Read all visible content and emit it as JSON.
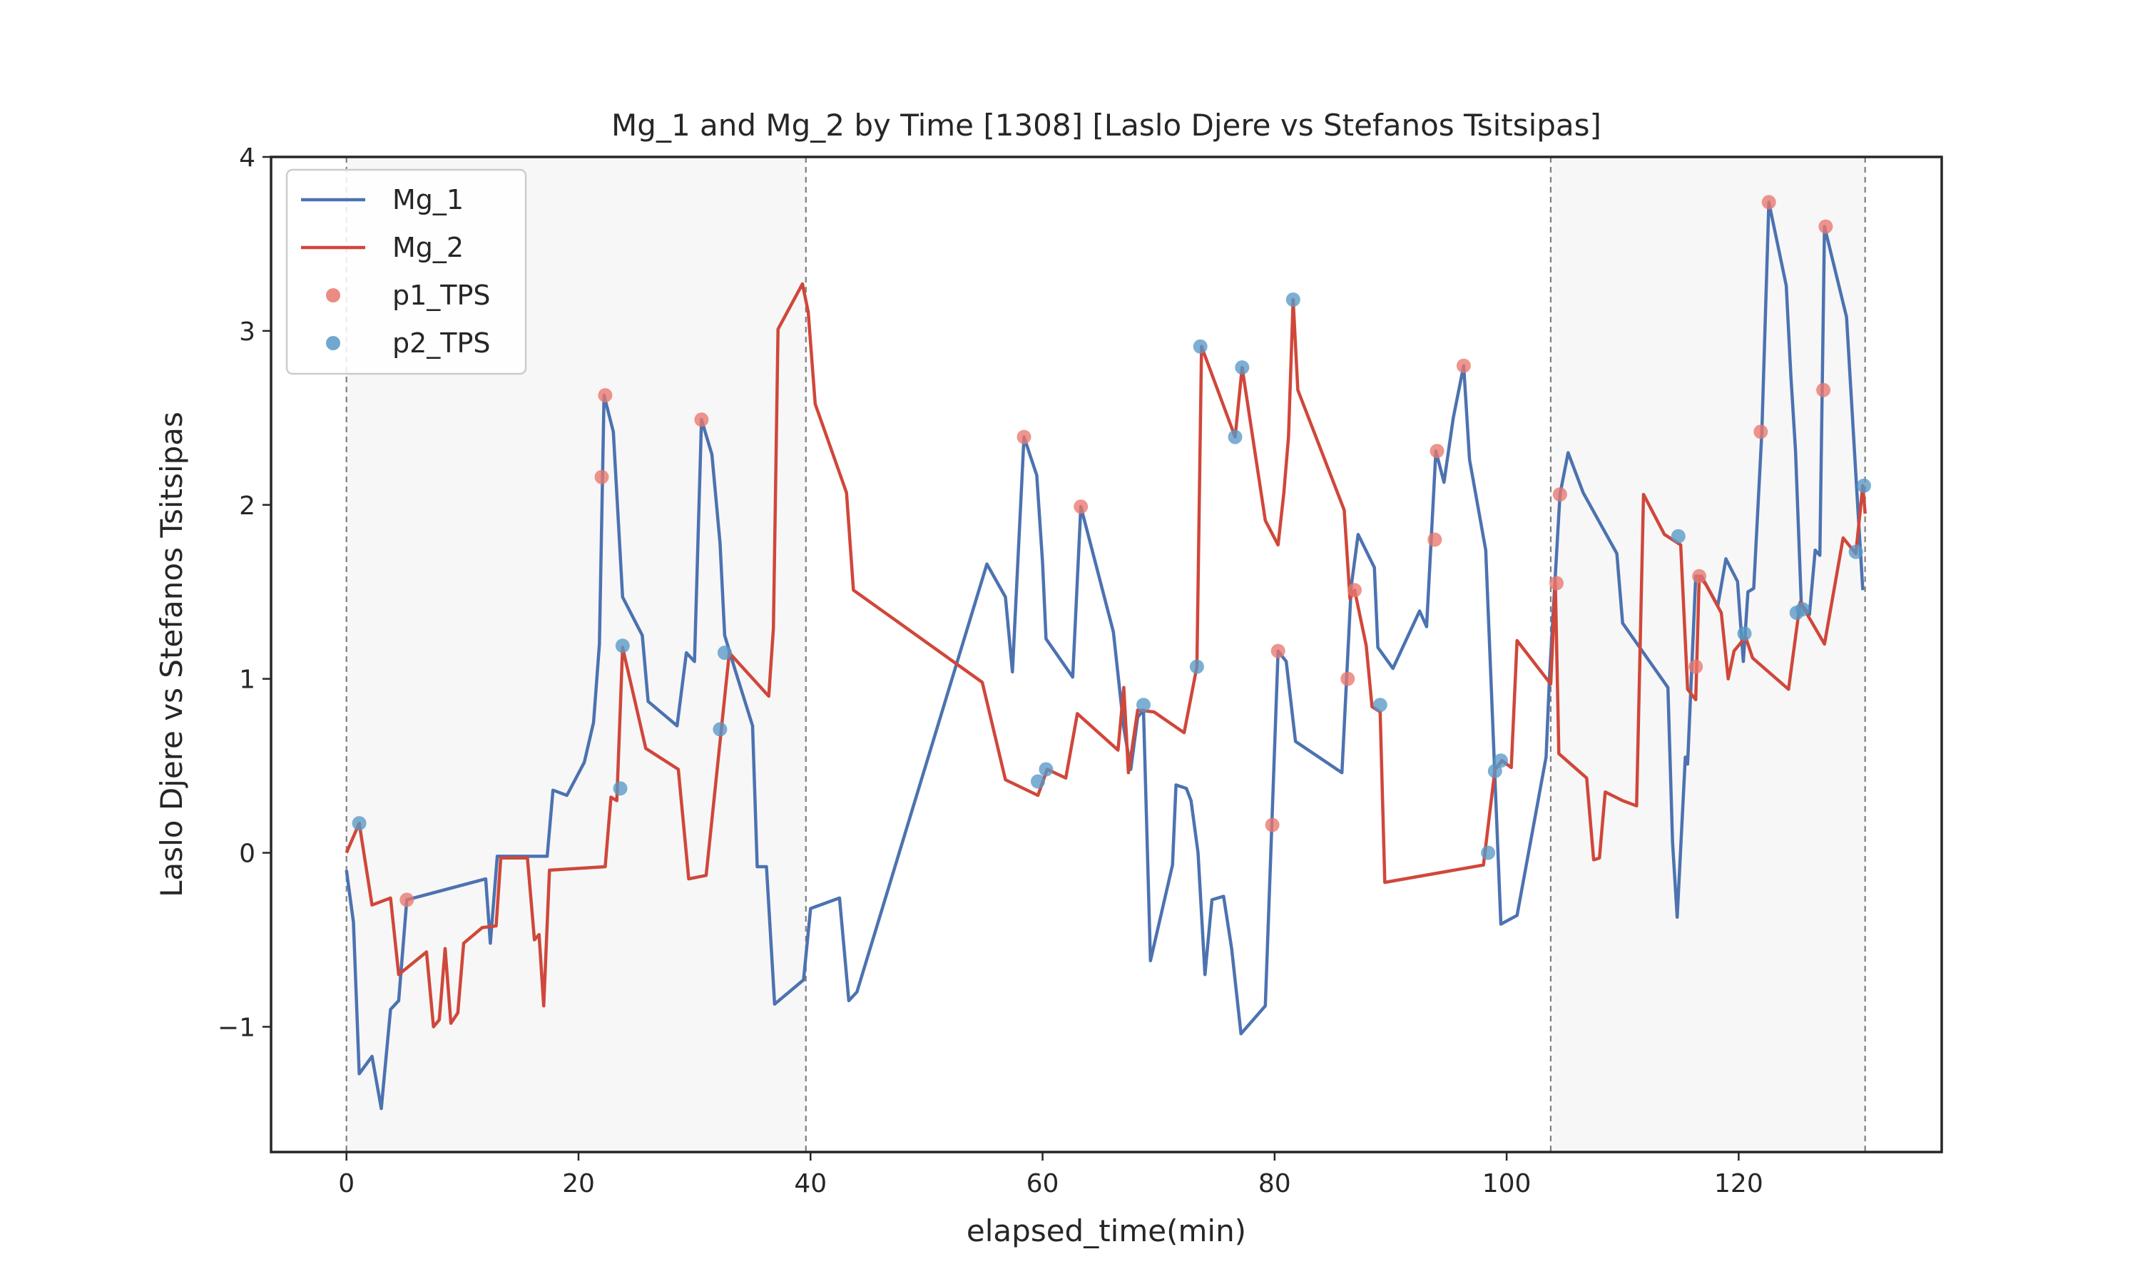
{
  "chart_data": {
    "type": "line",
    "title": "Mg_1 and Mg_2 by Time [1308] [Laslo Djere vs Stefanos Tsitsipas]",
    "xlabel": "elapsed_time(min)",
    "ylabel": "Laslo Djere vs Stefanos Tsitsipas",
    "xlim": [
      -6.5,
      137.5
    ],
    "ylim": [
      -1.72,
      4.0
    ],
    "xticks": [
      0,
      20,
      40,
      60,
      80,
      100,
      120
    ],
    "yticks": [
      -1,
      0,
      1,
      2,
      3,
      4
    ],
    "ytick_labels": [
      "−1",
      "0",
      "1",
      "2",
      "3",
      "4"
    ],
    "grid": false,
    "legend_position": "top-left",
    "set_boundaries": [
      0,
      39.6,
      103.8,
      130.9
    ],
    "shaded_sets": [
      [
        0,
        39.6
      ],
      [
        103.8,
        130.9
      ]
    ],
    "colors": {
      "mg1": "#4c72b0",
      "mg2": "#d0473a",
      "p1_tps": "#e8776e",
      "p2_tps": "#5799c7",
      "shade": "#f7f7f7",
      "divider": "#7f7f7f"
    },
    "series": [
      {
        "name": "Mg_1",
        "points": [
          [
            0,
            -0.1
          ],
          [
            0.6,
            -0.4
          ],
          [
            1.1,
            -1.27
          ],
          [
            2.2,
            -1.17
          ],
          [
            3.0,
            -1.47
          ],
          [
            3.8,
            -0.9
          ],
          [
            4.5,
            -0.85
          ],
          [
            5.2,
            -0.27
          ],
          [
            12.0,
            -0.15
          ],
          [
            12.4,
            -0.52
          ],
          [
            13.0,
            -0.02
          ],
          [
            17.3,
            -0.02
          ],
          [
            17.8,
            0.36
          ],
          [
            19.0,
            0.33
          ],
          [
            20.5,
            0.52
          ],
          [
            21.3,
            0.75
          ],
          [
            21.8,
            1.2
          ],
          [
            22.2,
            2.63
          ],
          [
            23.0,
            2.42
          ],
          [
            23.8,
            1.47
          ],
          [
            25.5,
            1.25
          ],
          [
            26.0,
            0.87
          ],
          [
            28.5,
            0.73
          ],
          [
            29.3,
            1.15
          ],
          [
            30.0,
            1.1
          ],
          [
            30.6,
            2.49
          ],
          [
            31.5,
            2.29
          ],
          [
            32.2,
            1.78
          ],
          [
            32.6,
            1.25
          ],
          [
            33.5,
            1.05
          ],
          [
            35.0,
            0.73
          ],
          [
            35.4,
            -0.08
          ],
          [
            36.2,
            -0.08
          ],
          [
            36.9,
            -0.87
          ],
          [
            39.4,
            -0.73
          ],
          [
            40.0,
            -0.32
          ],
          [
            42.5,
            -0.26
          ],
          [
            43.3,
            -0.85
          ],
          [
            44.0,
            -0.8
          ],
          [
            55.2,
            1.66
          ],
          [
            56.8,
            1.47
          ],
          [
            57.4,
            1.04
          ],
          [
            58.4,
            2.39
          ],
          [
            59.5,
            2.17
          ],
          [
            60.0,
            1.67
          ],
          [
            60.3,
            1.23
          ],
          [
            62.6,
            1.01
          ],
          [
            63.3,
            1.99
          ],
          [
            66.1,
            1.27
          ],
          [
            67.0,
            0.72
          ],
          [
            67.6,
            0.48
          ],
          [
            68.2,
            0.78
          ],
          [
            68.7,
            0.82
          ],
          [
            69.3,
            -0.62
          ],
          [
            71.2,
            -0.07
          ],
          [
            71.5,
            0.39
          ],
          [
            72.4,
            0.37
          ],
          [
            72.8,
            0.3
          ],
          [
            73.4,
            0.0
          ],
          [
            74.0,
            -0.7
          ],
          [
            74.6,
            -0.27
          ],
          [
            75.6,
            -0.25
          ],
          [
            76.3,
            -0.55
          ],
          [
            77.1,
            -1.04
          ],
          [
            79.2,
            -0.88
          ],
          [
            80.3,
            1.16
          ],
          [
            81.0,
            1.1
          ],
          [
            81.8,
            0.64
          ],
          [
            85.8,
            0.46
          ],
          [
            86.6,
            1.53
          ],
          [
            87.2,
            1.83
          ],
          [
            88.6,
            1.64
          ],
          [
            88.9,
            1.18
          ],
          [
            90.2,
            1.06
          ],
          [
            92.5,
            1.39
          ],
          [
            93.1,
            1.3
          ],
          [
            93.9,
            2.31
          ],
          [
            94.6,
            2.13
          ],
          [
            95.4,
            2.5
          ],
          [
            96.3,
            2.8
          ],
          [
            96.8,
            2.26
          ],
          [
            98.2,
            1.74
          ],
          [
            99.5,
            -0.41
          ],
          [
            100.9,
            -0.36
          ],
          [
            103.4,
            0.55
          ],
          [
            103.7,
            1.02
          ],
          [
            104.6,
            2.06
          ],
          [
            105.3,
            2.3
          ],
          [
            106.6,
            2.07
          ],
          [
            109.5,
            1.72
          ],
          [
            110.0,
            1.32
          ],
          [
            113.9,
            0.95
          ],
          [
            114.3,
            0.06
          ],
          [
            114.7,
            -0.37
          ],
          [
            115.4,
            0.55
          ],
          [
            115.6,
            0.51
          ],
          [
            116.3,
            1.59
          ],
          [
            116.8,
            1.59
          ],
          [
            118.2,
            1.42
          ],
          [
            118.9,
            1.69
          ],
          [
            119.9,
            1.56
          ],
          [
            120.4,
            1.1
          ],
          [
            120.8,
            1.5
          ],
          [
            121.3,
            1.52
          ],
          [
            122.0,
            2.42
          ],
          [
            122.6,
            3.74
          ],
          [
            124.1,
            3.26
          ],
          [
            124.5,
            2.74
          ],
          [
            124.9,
            2.31
          ],
          [
            125.4,
            1.43
          ],
          [
            126.1,
            1.37
          ],
          [
            126.6,
            1.74
          ],
          [
            127.0,
            1.71
          ],
          [
            127.4,
            3.6
          ],
          [
            129.3,
            3.08
          ],
          [
            130.3,
            1.95
          ],
          [
            130.7,
            1.51
          ]
        ]
      },
      {
        "name": "Mg_2",
        "points": [
          [
            0,
            0.0
          ],
          [
            1.1,
            0.17
          ],
          [
            2.2,
            -0.3
          ],
          [
            3.8,
            -0.26
          ],
          [
            4.5,
            -0.7
          ],
          [
            6.9,
            -0.57
          ],
          [
            7.5,
            -1.0
          ],
          [
            8.0,
            -0.96
          ],
          [
            8.5,
            -0.55
          ],
          [
            9.0,
            -0.98
          ],
          [
            9.6,
            -0.92
          ],
          [
            10.1,
            -0.52
          ],
          [
            11.7,
            -0.43
          ],
          [
            12.9,
            -0.42
          ],
          [
            13.3,
            -0.03
          ],
          [
            15.6,
            -0.03
          ],
          [
            16.2,
            -0.5
          ],
          [
            16.6,
            -0.47
          ],
          [
            17.0,
            -0.88
          ],
          [
            17.5,
            -0.1
          ],
          [
            22.3,
            -0.08
          ],
          [
            22.8,
            0.32
          ],
          [
            23.3,
            0.3
          ],
          [
            23.8,
            1.18
          ],
          [
            25.8,
            0.6
          ],
          [
            28.6,
            0.48
          ],
          [
            29.5,
            -0.15
          ],
          [
            31.0,
            -0.13
          ],
          [
            33.0,
            1.15
          ],
          [
            36.4,
            0.9
          ],
          [
            36.8,
            1.29
          ],
          [
            37.2,
            3.01
          ],
          [
            39.3,
            3.27
          ],
          [
            39.8,
            3.11
          ],
          [
            40.4,
            2.58
          ],
          [
            43.1,
            2.07
          ],
          [
            43.7,
            1.51
          ],
          [
            54.8,
            0.98
          ],
          [
            56.8,
            0.42
          ],
          [
            59.6,
            0.33
          ],
          [
            60.4,
            0.48
          ],
          [
            62.0,
            0.43
          ],
          [
            63.0,
            0.8
          ],
          [
            66.5,
            0.59
          ],
          [
            67.0,
            0.95
          ],
          [
            67.4,
            0.46
          ],
          [
            68.2,
            0.82
          ],
          [
            69.6,
            0.81
          ],
          [
            72.2,
            0.69
          ],
          [
            73.3,
            1.07
          ],
          [
            73.7,
            2.91
          ],
          [
            76.6,
            2.39
          ],
          [
            77.2,
            2.79
          ],
          [
            79.2,
            1.91
          ],
          [
            80.3,
            1.77
          ],
          [
            80.8,
            2.07
          ],
          [
            81.2,
            2.39
          ],
          [
            81.6,
            3.18
          ],
          [
            82.0,
            2.66
          ],
          [
            86.0,
            1.97
          ],
          [
            86.5,
            1.46
          ],
          [
            86.9,
            1.51
          ],
          [
            87.9,
            1.19
          ],
          [
            88.4,
            0.84
          ],
          [
            89.1,
            0.81
          ],
          [
            89.5,
            -0.17
          ],
          [
            98.0,
            -0.07
          ],
          [
            99.0,
            0.48
          ],
          [
            99.6,
            0.53
          ],
          [
            100.4,
            0.49
          ],
          [
            100.9,
            1.22
          ],
          [
            103.8,
            0.97
          ],
          [
            104.2,
            1.55
          ],
          [
            104.5,
            0.57
          ],
          [
            106.9,
            0.43
          ],
          [
            107.5,
            -0.04
          ],
          [
            108.0,
            -0.03
          ],
          [
            108.5,
            0.35
          ],
          [
            110.0,
            0.3
          ],
          [
            111.2,
            0.27
          ],
          [
            111.8,
            2.06
          ],
          [
            113.6,
            1.83
          ],
          [
            115.0,
            1.77
          ],
          [
            115.6,
            0.94
          ],
          [
            116.3,
            0.88
          ],
          [
            116.6,
            1.59
          ],
          [
            117.2,
            1.54
          ],
          [
            118.5,
            1.38
          ],
          [
            119.1,
            1.0
          ],
          [
            119.6,
            1.16
          ],
          [
            120.6,
            1.24
          ],
          [
            121.2,
            1.12
          ],
          [
            124.3,
            0.94
          ],
          [
            125.3,
            1.44
          ],
          [
            127.4,
            1.2
          ],
          [
            129.0,
            1.81
          ],
          [
            130.1,
            1.72
          ],
          [
            130.7,
            2.11
          ],
          [
            130.9,
            1.95
          ]
        ]
      }
    ],
    "scatter_series": [
      {
        "name": "p1_TPS",
        "points": [
          [
            22.0,
            2.16
          ],
          [
            22.3,
            2.63
          ],
          [
            30.6,
            2.49
          ],
          [
            5.2,
            -0.27
          ],
          [
            58.4,
            2.39
          ],
          [
            63.3,
            1.99
          ],
          [
            80.3,
            1.16
          ],
          [
            79.8,
            0.16
          ],
          [
            86.3,
            1.0
          ],
          [
            86.9,
            1.51
          ],
          [
            93.8,
            1.8
          ],
          [
            94.0,
            2.31
          ],
          [
            96.3,
            2.8
          ],
          [
            104.3,
            1.55
          ],
          [
            104.6,
            2.06
          ],
          [
            116.3,
            1.07
          ],
          [
            116.6,
            1.59
          ],
          [
            121.9,
            2.42
          ],
          [
            122.6,
            3.74
          ],
          [
            127.3,
            2.66
          ],
          [
            127.5,
            3.6
          ]
        ]
      },
      {
        "name": "p2_TPS",
        "points": [
          [
            1.1,
            0.17
          ],
          [
            23.6,
            0.37
          ],
          [
            23.8,
            1.19
          ],
          [
            32.2,
            0.71
          ],
          [
            32.6,
            1.15
          ],
          [
            59.6,
            0.41
          ],
          [
            60.3,
            0.48
          ],
          [
            68.7,
            0.85
          ],
          [
            73.3,
            1.07
          ],
          [
            73.6,
            2.91
          ],
          [
            76.6,
            2.39
          ],
          [
            77.2,
            2.79
          ],
          [
            81.6,
            3.18
          ],
          [
            89.1,
            0.85
          ],
          [
            98.4,
            0.0
          ],
          [
            99.0,
            0.47
          ],
          [
            99.5,
            0.53
          ],
          [
            114.8,
            1.82
          ],
          [
            120.5,
            1.26
          ],
          [
            125.0,
            1.38
          ],
          [
            125.5,
            1.4
          ],
          [
            130.1,
            1.73
          ],
          [
            130.8,
            2.11
          ]
        ]
      }
    ],
    "legend": [
      "Mg_1",
      "Mg_2",
      "p1_TPS",
      "p2_TPS"
    ]
  }
}
